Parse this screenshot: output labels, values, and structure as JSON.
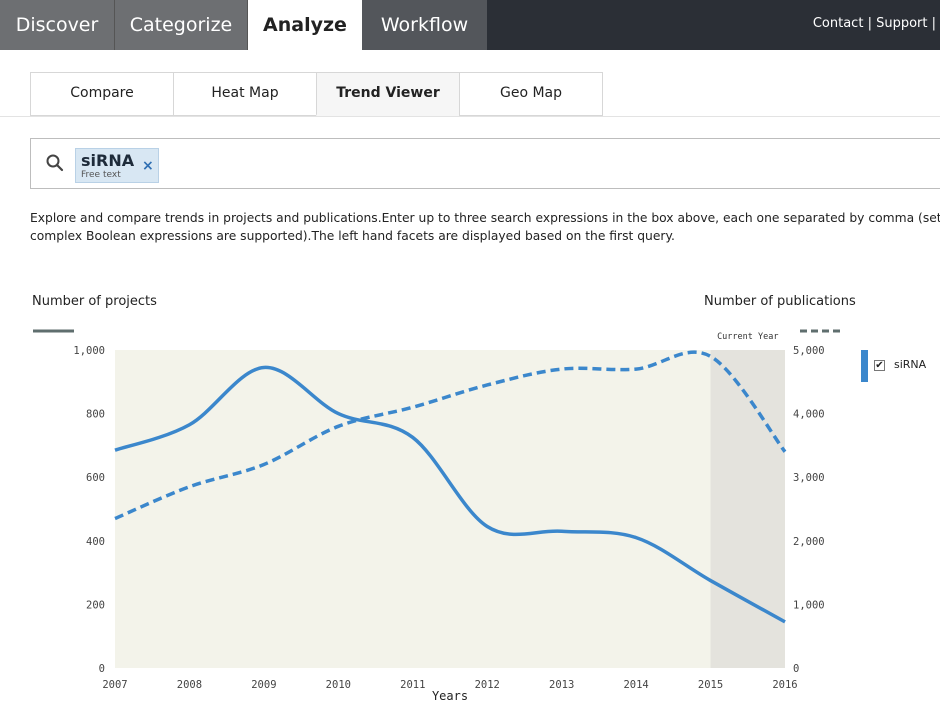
{
  "nav": {
    "tabs": [
      "Discover",
      "Categorize",
      "Analyze",
      "Workflow"
    ],
    "active_tab": "Analyze",
    "links": [
      "Contact",
      "Support"
    ]
  },
  "subtabs": {
    "items": [
      "Compare",
      "Heat Map",
      "Trend Viewer",
      "Geo Map"
    ],
    "active": "Trend Viewer"
  },
  "search": {
    "chip_text": "siRNA",
    "chip_type": "Free text",
    "remove_symbol": "×"
  },
  "description": [
    "Explore and compare trends in projects and publications.Enter up to three search expressions in the box above, each one separated by comma (sets of simple one",
    "complex Boolean expressions are supported).The left hand facets are displayed based on the first query."
  ],
  "chart_data": {
    "type": "line",
    "xlabel": "Years",
    "ylabel_left": "Number of projects",
    "ylabel_right": "Number of publications",
    "x": [
      2007,
      2008,
      2009,
      2010,
      2011,
      2012,
      2013,
      2014,
      2015,
      2016
    ],
    "ylim_left": [
      0,
      1000
    ],
    "ylim_right": [
      0,
      5000
    ],
    "yticks_left": [
      0,
      200,
      400,
      600,
      800,
      1000
    ],
    "yticks_right": [
      0,
      1000,
      2000,
      3000,
      4000,
      5000
    ],
    "yticks_left_labels": [
      "0",
      "200",
      "400",
      "600",
      "800",
      "1,000"
    ],
    "yticks_right_labels": [
      "0",
      "1,000",
      "2,000",
      "3,000",
      "4,000",
      "5,000"
    ],
    "annotation": "Current Year",
    "current_year_range": [
      2015,
      2016
    ],
    "series": [
      {
        "name": "siRNA",
        "axis": "left",
        "style": "solid",
        "measure": "projects",
        "values": [
          685,
          765,
          945,
          800,
          725,
          445,
          430,
          410,
          275,
          145
        ]
      },
      {
        "name": "siRNA",
        "axis": "right",
        "style": "dashed",
        "measure": "publications",
        "values": [
          2350,
          2850,
          3200,
          3800,
          4100,
          4450,
          4700,
          4700,
          4900,
          3400
        ]
      }
    ],
    "legend": [
      {
        "label": "siRNA",
        "checked": true,
        "color": "#3b87cc"
      }
    ],
    "colors": {
      "line": "#3b87cc",
      "plot_bg": "#f3f3ea",
      "current_year_bg": "#e4e3dd"
    }
  }
}
